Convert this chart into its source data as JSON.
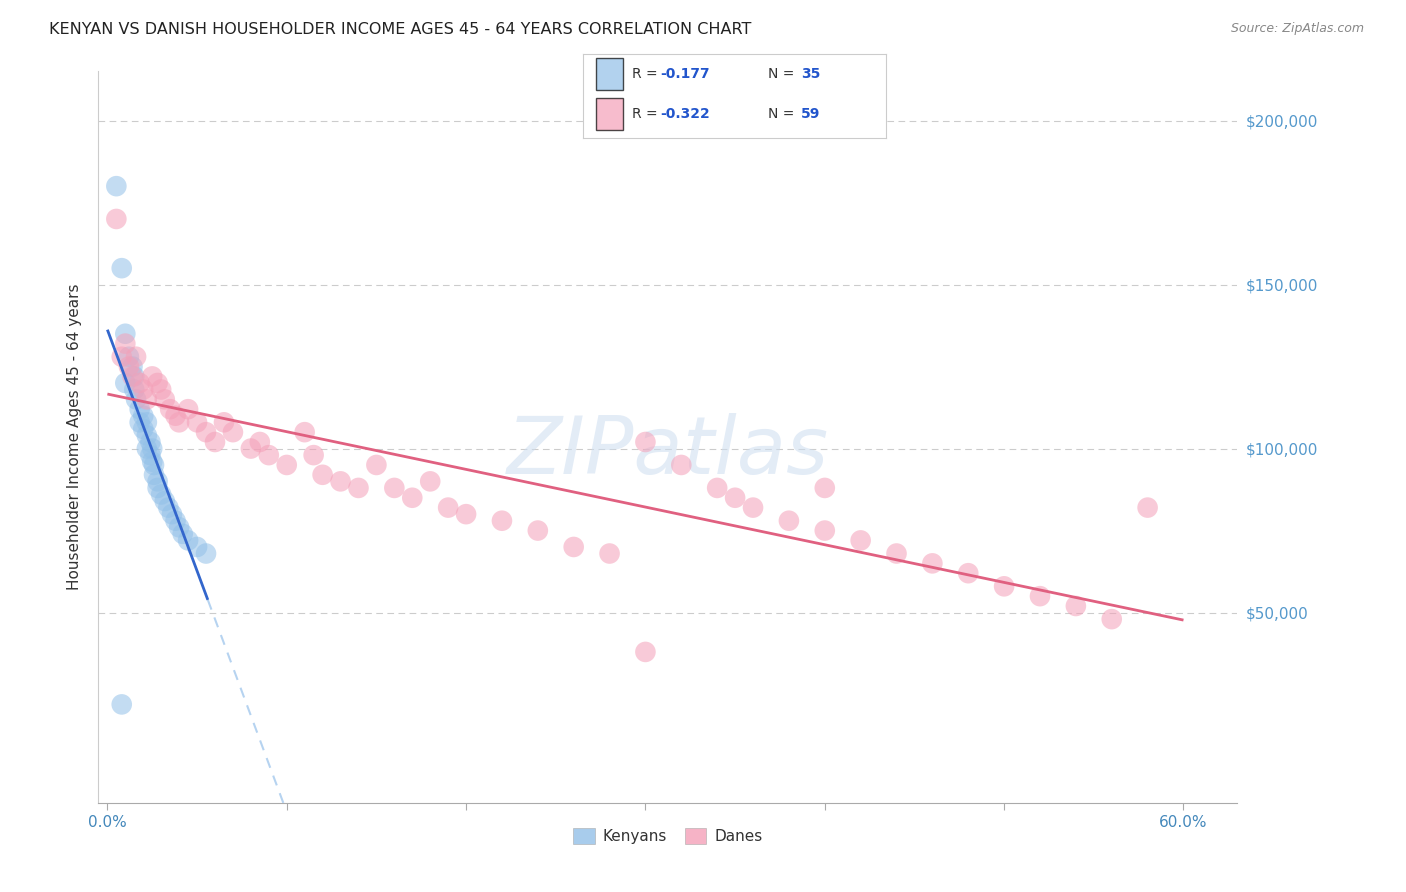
{
  "title": "KENYAN VS DANISH HOUSEHOLDER INCOME AGES 45 - 64 YEARS CORRELATION CHART",
  "source": "Source: ZipAtlas.com",
  "ylabel": "Householder Income Ages 45 - 64 years",
  "background_color": "#ffffff",
  "watermark": "ZIPatlas",
  "kenyan_color": "#92c0e8",
  "dane_color": "#f4a0b8",
  "kenyan_line_color": "#3366cc",
  "dane_line_color": "#e06080",
  "dashed_line_color": "#aaccee",
  "kenyans_x": [
    0.005,
    0.008,
    0.01,
    0.01,
    0.012,
    0.014,
    0.015,
    0.015,
    0.016,
    0.018,
    0.018,
    0.02,
    0.02,
    0.022,
    0.022,
    0.022,
    0.024,
    0.024,
    0.025,
    0.025,
    0.026,
    0.026,
    0.028,
    0.028,
    0.03,
    0.032,
    0.034,
    0.036,
    0.038,
    0.04,
    0.042,
    0.045,
    0.05,
    0.055,
    0.008
  ],
  "kenyans_y": [
    180000,
    155000,
    120000,
    135000,
    128000,
    125000,
    118000,
    122000,
    115000,
    112000,
    108000,
    106000,
    110000,
    108000,
    104000,
    100000,
    102000,
    98000,
    96000,
    100000,
    95000,
    92000,
    90000,
    88000,
    86000,
    84000,
    82000,
    80000,
    78000,
    76000,
    74000,
    72000,
    70000,
    68000,
    22000
  ],
  "danes_x": [
    0.005,
    0.008,
    0.01,
    0.012,
    0.014,
    0.016,
    0.018,
    0.02,
    0.022,
    0.025,
    0.028,
    0.03,
    0.032,
    0.035,
    0.038,
    0.04,
    0.045,
    0.05,
    0.055,
    0.06,
    0.065,
    0.07,
    0.08,
    0.085,
    0.09,
    0.1,
    0.11,
    0.115,
    0.12,
    0.13,
    0.14,
    0.15,
    0.16,
    0.17,
    0.18,
    0.19,
    0.2,
    0.22,
    0.24,
    0.26,
    0.28,
    0.3,
    0.32,
    0.34,
    0.36,
    0.38,
    0.4,
    0.42,
    0.44,
    0.46,
    0.48,
    0.5,
    0.52,
    0.54,
    0.56,
    0.3,
    0.35,
    0.4,
    0.58
  ],
  "danes_y": [
    170000,
    128000,
    132000,
    125000,
    122000,
    128000,
    120000,
    118000,
    115000,
    122000,
    120000,
    118000,
    115000,
    112000,
    110000,
    108000,
    112000,
    108000,
    105000,
    102000,
    108000,
    105000,
    100000,
    102000,
    98000,
    95000,
    105000,
    98000,
    92000,
    90000,
    88000,
    95000,
    88000,
    85000,
    90000,
    82000,
    80000,
    78000,
    75000,
    70000,
    68000,
    102000,
    95000,
    88000,
    82000,
    78000,
    75000,
    72000,
    68000,
    65000,
    62000,
    58000,
    55000,
    52000,
    48000,
    38000,
    85000,
    88000,
    82000
  ],
  "xlim": [
    -0.005,
    0.63
  ],
  "ylim": [
    -8000,
    215000
  ],
  "yticks": [
    0,
    50000,
    100000,
    150000,
    200000
  ],
  "ytick_labels_right": [
    "",
    "$50,000",
    "$100,000",
    "$150,000",
    "$200,000"
  ],
  "xtick_positions": [
    0.0,
    0.1,
    0.2,
    0.3,
    0.4,
    0.5,
    0.6
  ]
}
